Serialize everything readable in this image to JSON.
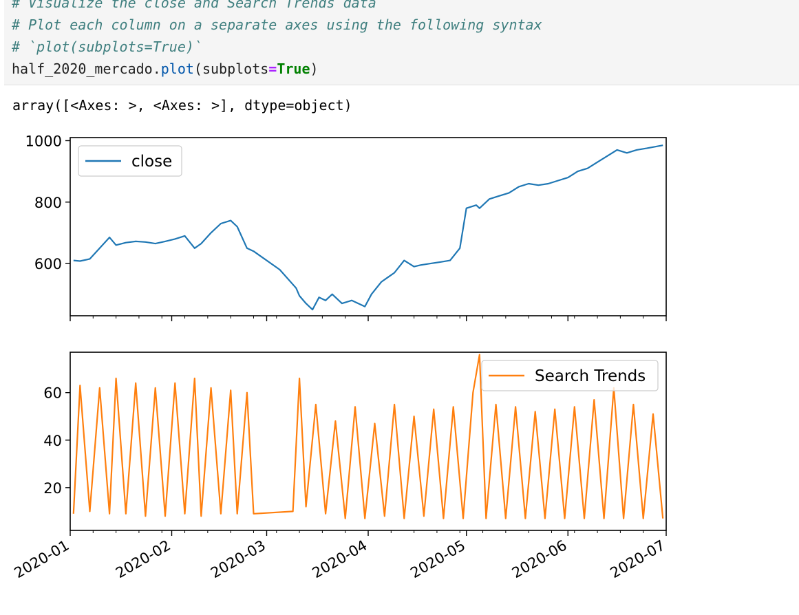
{
  "code_cell": {
    "line0": "# Visualize the close and Search Trends data",
    "line1": "# Plot each column on a separate axes using the following syntax",
    "line2": "# `plot(subplots=True)`",
    "line3_ident": "half_2020_mercado",
    "line3_dot": ".",
    "line3_method": "plot",
    "line3_open": "(subplots",
    "line3_eq": "=",
    "line3_kw": "True",
    "line3_close": ")"
  },
  "output": {
    "repr": "array([<Axes: >, <Axes: >], dtype=object)"
  },
  "colors": {
    "close": "#1f77b4",
    "search_trends": "#ff7f0e"
  },
  "chart_data": [
    {
      "type": "line",
      "series": [
        {
          "name": "close",
          "x": [
            "2020-01-02",
            "2020-01-04",
            "2020-01-07",
            "2020-01-10",
            "2020-01-13",
            "2020-01-15",
            "2020-01-18",
            "2020-01-21",
            "2020-01-24",
            "2020-01-27",
            "2020-01-30",
            "2020-02-02",
            "2020-02-05",
            "2020-02-08",
            "2020-02-10",
            "2020-02-13",
            "2020-02-16",
            "2020-02-19",
            "2020-02-21",
            "2020-02-24",
            "2020-02-26",
            "2020-03-05",
            "2020-03-10",
            "2020-03-11",
            "2020-03-13",
            "2020-03-15",
            "2020-03-17",
            "2020-03-19",
            "2020-03-21",
            "2020-03-24",
            "2020-03-27",
            "2020-03-31",
            "2020-04-02",
            "2020-04-05",
            "2020-04-07",
            "2020-04-09",
            "2020-04-12",
            "2020-04-15",
            "2020-04-17",
            "2020-04-20",
            "2020-04-23",
            "2020-04-26",
            "2020-04-29",
            "2020-05-01",
            "2020-05-04",
            "2020-05-05",
            "2020-05-08",
            "2020-05-11",
            "2020-05-14",
            "2020-05-17",
            "2020-05-20",
            "2020-05-23",
            "2020-05-26",
            "2020-05-29",
            "2020-06-01",
            "2020-06-04",
            "2020-06-07",
            "2020-06-10",
            "2020-06-13",
            "2020-06-16",
            "2020-06-19",
            "2020-06-22",
            "2020-06-25",
            "2020-06-30"
          ],
          "values": [
            610,
            608,
            615,
            650,
            685,
            660,
            668,
            672,
            670,
            665,
            672,
            680,
            690,
            650,
            665,
            700,
            730,
            740,
            720,
            650,
            640,
            580,
            520,
            495,
            470,
            450,
            490,
            480,
            500,
            470,
            480,
            460,
            500,
            540,
            555,
            570,
            610,
            590,
            595,
            600,
            605,
            610,
            650,
            780,
            790,
            780,
            810,
            820,
            830,
            850,
            860,
            855,
            860,
            870,
            880,
            900,
            910,
            930,
            950,
            970,
            960,
            970,
            975,
            985
          ]
        }
      ],
      "xlim": [
        "2020-01-01",
        "2020-07-01"
      ],
      "ylim": [
        430,
        1010
      ],
      "yticks": [
        600,
        800,
        1000
      ],
      "legend": "top-left"
    },
    {
      "type": "line",
      "series": [
        {
          "name": "Search Trends",
          "x": [
            "2020-01-02",
            "2020-01-04",
            "2020-01-07",
            "2020-01-10",
            "2020-01-13",
            "2020-01-15",
            "2020-01-18",
            "2020-01-21",
            "2020-01-24",
            "2020-01-27",
            "2020-01-30",
            "2020-02-02",
            "2020-02-05",
            "2020-02-08",
            "2020-02-10",
            "2020-02-13",
            "2020-02-16",
            "2020-02-19",
            "2020-02-21",
            "2020-02-24",
            "2020-02-26",
            "2020-03-09",
            "2020-03-11",
            "2020-03-13",
            "2020-03-16",
            "2020-03-19",
            "2020-03-22",
            "2020-03-25",
            "2020-03-28",
            "2020-03-31",
            "2020-04-03",
            "2020-04-06",
            "2020-04-09",
            "2020-04-12",
            "2020-04-15",
            "2020-04-18",
            "2020-04-21",
            "2020-04-24",
            "2020-04-27",
            "2020-04-30",
            "2020-05-03",
            "2020-05-05",
            "2020-05-07",
            "2020-05-10",
            "2020-05-13",
            "2020-05-16",
            "2020-05-19",
            "2020-05-22",
            "2020-05-25",
            "2020-05-28",
            "2020-05-31",
            "2020-06-03",
            "2020-06-06",
            "2020-06-09",
            "2020-06-12",
            "2020-06-15",
            "2020-06-18",
            "2020-06-21",
            "2020-06-24",
            "2020-06-27",
            "2020-06-30"
          ],
          "values": [
            9,
            63,
            10,
            62,
            9,
            66,
            9,
            64,
            8,
            62,
            8,
            64,
            9,
            66,
            8,
            62,
            9,
            61,
            9,
            60,
            9,
            10,
            66,
            12,
            55,
            9,
            48,
            7,
            54,
            7,
            47,
            8,
            55,
            7,
            50,
            8,
            53,
            7,
            54,
            7,
            60,
            76,
            7,
            55,
            7,
            54,
            7,
            52,
            7,
            53,
            7,
            54,
            7,
            57,
            7,
            62,
            7,
            55,
            7,
            51,
            7
          ]
        }
      ],
      "xlim": [
        "2020-01-01",
        "2020-07-01"
      ],
      "ylim": [
        2,
        77
      ],
      "yticks": [
        20,
        40,
        60
      ],
      "xticks": [
        "2020-01",
        "2020-02",
        "2020-03",
        "2020-04",
        "2020-05",
        "2020-06",
        "2020-07"
      ],
      "legend": "top-right"
    }
  ]
}
